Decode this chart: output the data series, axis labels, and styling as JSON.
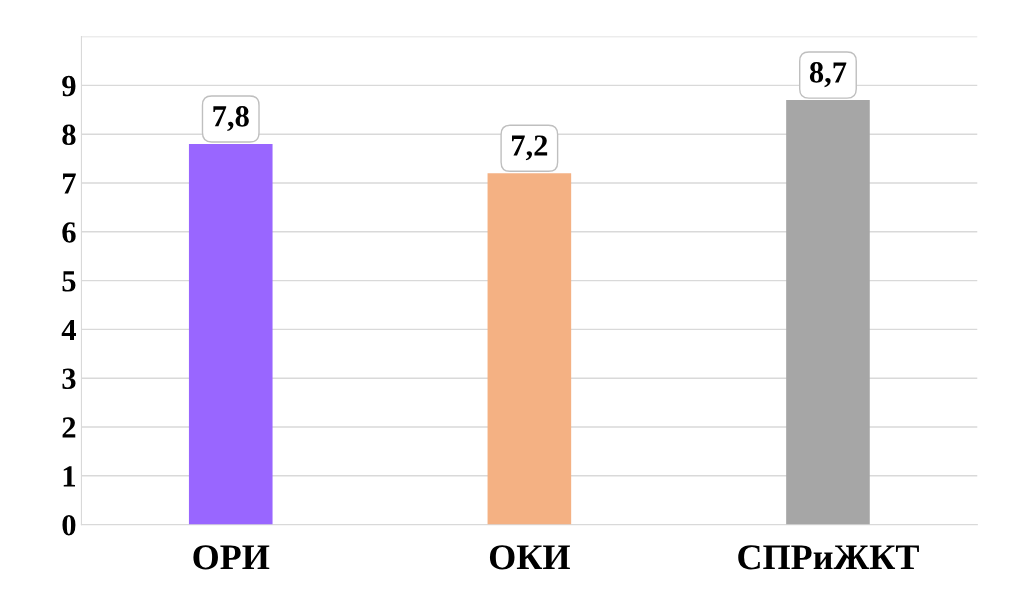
{
  "chart_data": {
    "type": "bar",
    "categories": [
      "ОРИ",
      "ОКИ",
      "СПРиЖКТ"
    ],
    "values": [
      7.8,
      7.2,
      8.7
    ],
    "colors": [
      "#9966ff",
      "#f4b183",
      "#a6a6a6"
    ],
    "value_labels": [
      "7,8",
      "7,2",
      "8,7"
    ],
    "ylim": [
      0,
      10
    ],
    "yticks": [
      0,
      1,
      2,
      3,
      4,
      5,
      6,
      7,
      8,
      9,
      {
        "value": 10,
        "label": null
      }
    ],
    "grid": "y"
  }
}
